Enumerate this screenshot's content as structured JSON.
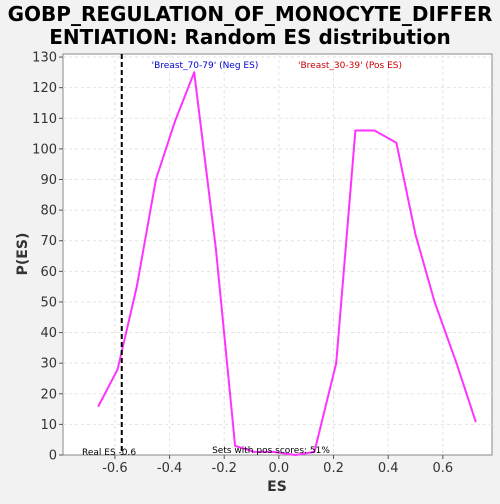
{
  "chart_data": {
    "type": "line",
    "title_line1": "GOBP_REGULATION_OF_MONOCYTE_DIFFER",
    "title_line2": "ENTIATION: Random ES distribution",
    "xlabel": "ES",
    "ylabel": "P(ES)",
    "xlim": [
      -0.79,
      0.78
    ],
    "ylim": [
      0,
      131
    ],
    "x_ticks": [
      -0.6,
      -0.4,
      -0.2,
      0.0,
      0.2,
      0.4,
      0.6
    ],
    "x_tick_labels": [
      "-0.6",
      "-0.4",
      "-0.2",
      "0.0",
      "0.2",
      "0.4",
      "0.6"
    ],
    "y_ticks": [
      0,
      10,
      20,
      30,
      40,
      50,
      60,
      70,
      80,
      90,
      100,
      110,
      120,
      130
    ],
    "y_tick_labels": [
      "0",
      "10",
      "20",
      "30",
      "40",
      "50",
      "60",
      "70",
      "80",
      "90",
      "100",
      "110",
      "120",
      "130"
    ],
    "grid": true,
    "series": [
      {
        "color": "#ff33ff",
        "x": [
          -0.66,
          -0.59,
          -0.52,
          -0.45,
          -0.38,
          -0.31,
          -0.23,
          -0.16,
          -0.09,
          -0.02,
          0.06,
          0.13,
          0.21,
          0.28,
          0.35,
          0.43,
          0.5,
          0.57,
          0.65,
          0.72
        ],
        "y": [
          16,
          28,
          55,
          90,
          109,
          125,
          67,
          3,
          1,
          1,
          0,
          1,
          30,
          106,
          106,
          102,
          72,
          50,
          30,
          11
        ]
      }
    ],
    "real_es": -0.575,
    "real_es_label": "Real ES -0.6",
    "neg_label": "'Breast_70-79' (Neg ES)",
    "neg_color": "#0000cc",
    "pos_label": "'Breast_30-39' (Pos ES)",
    "pos_color": "#cc0000",
    "pos_scores_label": "Sets with pos scores: 51%"
  }
}
